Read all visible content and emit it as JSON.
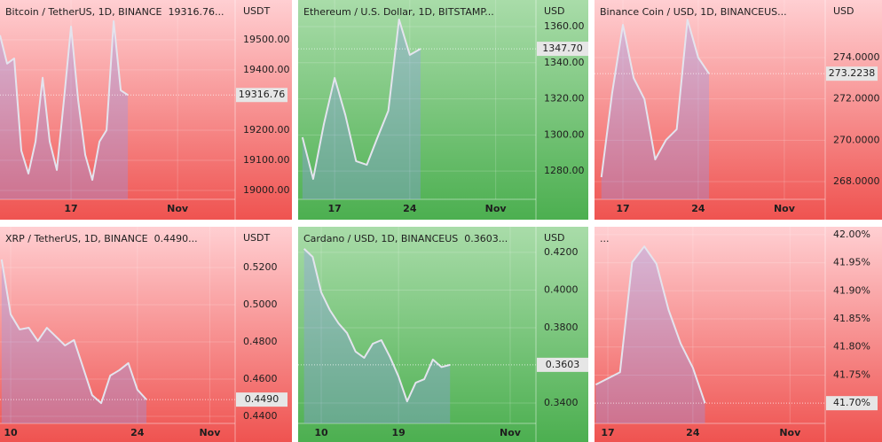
{
  "chart_data": [
    {
      "type": "area",
      "title": "Bitcoin / TetherUS, 1D, BINANCE  19316.76...",
      "unit": "USDT",
      "background": [
        "#ffcfd2",
        "#ef5350"
      ],
      "color": "#e4e4ee",
      "fill": "#8f9cf0",
      "x": [
        7,
        8,
        9,
        10,
        11,
        12,
        13,
        14,
        15,
        16,
        17,
        18,
        19,
        20,
        21,
        22,
        23,
        24,
        25
      ],
      "values": [
        19515,
        19421,
        19438,
        19132,
        19056,
        19162,
        19374,
        19162,
        19068,
        19300,
        19544,
        19300,
        19118,
        19035,
        19162,
        19200,
        19562,
        19332,
        19316.76
      ],
      "value_labels": [
        null,
        null,
        null,
        null,
        null,
        null,
        null,
        null,
        null,
        null,
        null,
        null,
        null,
        null,
        null,
        null,
        null,
        null,
        "19316.76"
      ],
      "xlim": [
        7,
        40.1
      ],
      "xticks": [
        17,
        {
          "value": 32,
          "label": "Nov"
        }
      ],
      "ylim": [
        18970.6,
        19632
      ],
      "yticks": [
        {
          "value": 19000,
          "label": "19000.00"
        },
        {
          "value": 19100,
          "label": "19100.00"
        },
        {
          "value": 19200,
          "label": "19200.00"
        },
        {
          "value": 19400,
          "label": "19400.00"
        },
        {
          "value": 19500,
          "label": "19500.00"
        }
      ]
    },
    {
      "type": "area",
      "title": "Ethereum / U.S. Dollar, 1D, BITSTAMP...",
      "unit": "USD",
      "background": [
        "#a9dca9",
        "#4caf50"
      ],
      "color": "#e4e4ee",
      "fill": "#8f9cf0",
      "x": [
        14,
        15,
        16,
        17,
        18,
        19,
        20,
        21,
        22,
        23,
        24,
        25
      ],
      "values": [
        1298.7,
        1275.7,
        1306.1,
        1331.6,
        1311,
        1285.5,
        1283.5,
        1298.7,
        1313.4,
        1363.9,
        1344.3,
        1347.7
      ],
      "value_labels": [
        null,
        null,
        null,
        null,
        null,
        null,
        null,
        null,
        null,
        null,
        null,
        "1347.70"
      ],
      "xlim": [
        13.6,
        35.75
      ],
      "xticks": [
        17,
        24,
        {
          "value": 32,
          "label": "Nov"
        }
      ],
      "ylim": [
        1264.4,
        1374.7
      ],
      "yticks": [
        {
          "value": 1280,
          "label": "1280.00"
        },
        {
          "value": 1300,
          "label": "1300.00"
        },
        {
          "value": 1320,
          "label": "1320.00"
        },
        {
          "value": 1340,
          "label": "1340.00"
        },
        {
          "value": 1360,
          "label": "1360.00"
        }
      ]
    },
    {
      "type": "area",
      "title": "Binance Coin / USD, 1D, BINANCEUS...",
      "unit": "USD",
      "background": [
        "#ffcfd2",
        "#ef5350"
      ],
      "color": "#e4e4ee",
      "fill": "#8f9cf0",
      "x": [
        15,
        16,
        17,
        18,
        19,
        20,
        21,
        22,
        23,
        24,
        25
      ],
      "values": [
        268.21,
        272.29,
        275.59,
        273.01,
        271.99,
        269.07,
        270.01,
        270.53,
        275.84,
        274,
        273.2238
      ],
      "value_labels": [
        null,
        null,
        null,
        null,
        null,
        null,
        null,
        null,
        null,
        null,
        "273.2238"
      ],
      "xlim": [
        14.36,
        35.8
      ],
      "xticks": [
        17,
        24,
        {
          "value": 32,
          "label": "Nov"
        }
      ],
      "ylim": [
        267.14,
        276.79
      ],
      "yticks": [
        {
          "value": 268,
          "label": "268.0000"
        },
        {
          "value": 270,
          "label": "270.0000"
        },
        {
          "value": 272,
          "label": "272.0000"
        },
        {
          "value": 274,
          "label": "274.0000"
        }
      ]
    },
    {
      "type": "area",
      "title": "XRP / TetherUS, 1D, BINANCE  0.4490...",
      "unit": "USDT",
      "background": [
        "#ffcfd2",
        "#ef5350"
      ],
      "color": "#e4e4ee",
      "fill": "#8f9cf0",
      "x": [
        9,
        10,
        11,
        12,
        13,
        14,
        15,
        16,
        17,
        18,
        19,
        20,
        21,
        22,
        23,
        24,
        25
      ],
      "values": [
        0.5243,
        0.4948,
        0.4867,
        0.4876,
        0.4805,
        0.4876,
        0.4829,
        0.4781,
        0.481,
        0.4662,
        0.4514,
        0.4471,
        0.4619,
        0.4648,
        0.4686,
        0.4543,
        0.449
      ],
      "value_labels": [
        null,
        null,
        null,
        null,
        null,
        null,
        null,
        null,
        null,
        null,
        null,
        null,
        null,
        null,
        null,
        null,
        "0.4490"
      ],
      "xlim": [
        8.82,
        34.8
      ],
      "xticks": [
        10,
        24,
        {
          "value": 32,
          "label": "Nov"
        }
      ],
      "ylim": [
        0.4362,
        0.5419
      ],
      "yticks": [
        {
          "value": 0.44,
          "label": "0.4400"
        },
        {
          "value": 0.46,
          "label": "0.4600"
        },
        {
          "value": 0.48,
          "label": "0.4800"
        },
        {
          "value": 0.5,
          "label": "0.5000"
        },
        {
          "value": 0.52,
          "label": "0.5200"
        }
      ]
    },
    {
      "type": "area",
      "title": "Cardano / USD, 1D, BINANCEUS  0.3603...",
      "unit": "USD",
      "background": [
        "#a9dca9",
        "#4caf50"
      ],
      "color": "#e4e4ee",
      "fill": "#8f9cf0",
      "x": [
        8,
        9,
        10,
        11,
        12,
        13,
        14,
        15,
        16,
        17,
        18,
        19,
        20,
        21,
        22,
        23,
        24,
        25
      ],
      "values": [
        0.4219,
        0.4176,
        0.3988,
        0.3894,
        0.3824,
        0.3772,
        0.3673,
        0.364,
        0.3715,
        0.3734,
        0.3645,
        0.3541,
        0.3409,
        0.3508,
        0.3527,
        0.3631,
        0.3591,
        0.3603
      ],
      "value_labels": [
        null,
        null,
        null,
        null,
        null,
        null,
        null,
        null,
        null,
        null,
        null,
        null,
        null,
        null,
        null,
        null,
        null,
        "0.3603"
      ],
      "xlim": [
        7.31,
        35
      ],
      "xticks": [
        10,
        19,
        {
          "value": 32,
          "label": "Nov"
        }
      ],
      "ylim": [
        0.3292,
        0.4336
      ],
      "yticks": [
        {
          "value": 0.34,
          "label": "0.3400"
        },
        {
          "value": 0.38,
          "label": "0.3800"
        },
        {
          "value": 0.4,
          "label": "0.4000"
        },
        {
          "value": 0.42,
          "label": "0.4200"
        }
      ]
    },
    {
      "type": "area",
      "title": "...",
      "background": [
        "#ffcfd2",
        "#ef5350"
      ],
      "color": "#e4e4ee",
      "fill": "#8f9cf0",
      "x": [
        16,
        17,
        18,
        19,
        20,
        21,
        22,
        23,
        24,
        25
      ],
      "values": [
        41.733,
        41.744,
        41.755,
        41.951,
        41.979,
        41.948,
        41.866,
        41.806,
        41.763,
        41.7
      ],
      "value_labels": [
        null,
        null,
        null,
        null,
        null,
        null,
        null,
        null,
        null,
        "41.70%"
      ],
      "xlim": [
        15.9,
        34.9
      ],
      "xticks": [
        17,
        24,
        {
          "value": 32,
          "label": "Nov"
        }
      ],
      "ylim": [
        41.664,
        42.014
      ],
      "yticks": [
        {
          "value": 41.75,
          "label": "41.75%"
        },
        {
          "value": 41.8,
          "label": "41.80%"
        },
        {
          "value": 41.85,
          "label": "41.85%"
        },
        {
          "value": 41.9,
          "label": "41.90%"
        },
        {
          "value": 41.95,
          "label": "41.95%"
        },
        {
          "value": 42,
          "label": "42.00%"
        }
      ]
    }
  ]
}
